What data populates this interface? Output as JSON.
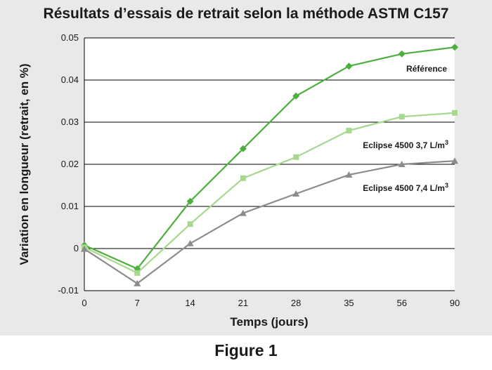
{
  "chart_data": {
    "type": "line",
    "title": "Résultats d’essais de retrait selon la méthode ASTM C157",
    "xlabel": "Temps (jours)",
    "ylabel": "Variation en longueur (retrait, en %)",
    "categories": [
      "0",
      "7",
      "14",
      "21",
      "28",
      "35",
      "56",
      "90"
    ],
    "ylim": [
      -0.01,
      0.05
    ],
    "yticks": [
      "-0.01",
      "0",
      "0.01",
      "0.02",
      "0.03",
      "0.04",
      "0.05"
    ],
    "grid": "horizontal",
    "series": [
      {
        "name": "Référence",
        "label_main": "Référence",
        "label_sup": "",
        "color": "#4caf3e",
        "marker": "diamond",
        "values": [
          0.0008,
          -0.0048,
          0.0112,
          0.0237,
          0.0362,
          0.0433,
          0.0462,
          0.0478
        ]
      },
      {
        "name": "Eclipse 4500 3,7 L/m3",
        "label_main": "Eclipse 4500 3,7 L/m",
        "label_sup": "3",
        "color": "#a6d98f",
        "marker": "square",
        "values": [
          0.0003,
          -0.0058,
          0.0058,
          0.0167,
          0.0217,
          0.028,
          0.0313,
          0.0322
        ]
      },
      {
        "name": "Eclipse 4500 7,4 L/m3",
        "label_main": "Eclipse 4500 7,4 L/m",
        "label_sup": "3",
        "color": "#8c8c8c",
        "marker": "triangle",
        "values": [
          -0.0001,
          -0.0083,
          0.0012,
          0.0084,
          0.013,
          0.0175,
          0.02,
          0.0208
        ]
      }
    ]
  },
  "caption": "Figure 1"
}
